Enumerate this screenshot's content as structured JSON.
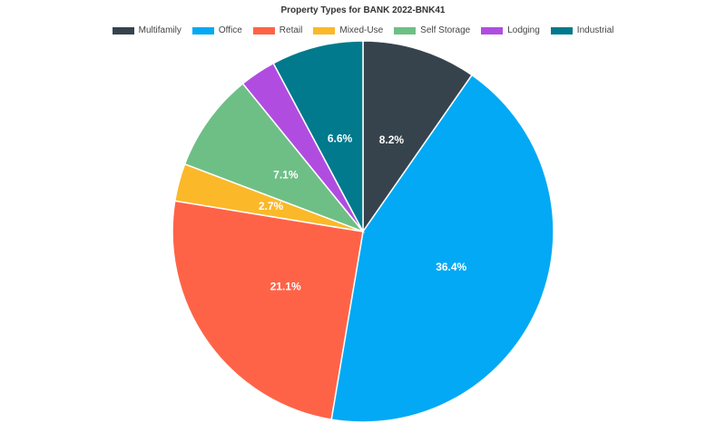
{
  "chart_data": {
    "type": "pie",
    "title": "Property Types for BANK 2022-BNK41",
    "categories": [
      "Multifamily",
      "Office",
      "Retail",
      "Mixed-Use",
      "Self Storage",
      "Lodging",
      "Industrial"
    ],
    "values": [
      8.2,
      36.4,
      21.1,
      2.7,
      7.1,
      2.6,
      6.6
    ],
    "labels": [
      "8.2%",
      "36.4%",
      "21.1%",
      "2.7%",
      "7.1%",
      "",
      "6.6%"
    ],
    "colors": [
      "#36434d",
      "#03a9f4",
      "#ff6347",
      "#fbb829",
      "#6ebf85",
      "#b04de0",
      "#007a8c"
    ],
    "legend": "top-center"
  }
}
